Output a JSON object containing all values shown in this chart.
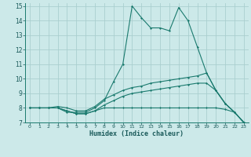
{
  "xlabel": "Humidex (Indice chaleur)",
  "bg_color": "#cce9e9",
  "grid_color": "#aacfcf",
  "line_color": "#1a7a6e",
  "xlim": [
    -0.5,
    23.5
  ],
  "ylim": [
    7,
    15.2
  ],
  "xticks": [
    0,
    1,
    2,
    3,
    4,
    5,
    6,
    7,
    8,
    9,
    10,
    11,
    12,
    13,
    14,
    15,
    16,
    17,
    18,
    19,
    20,
    21,
    22,
    23
  ],
  "yticks": [
    7,
    8,
    9,
    10,
    11,
    12,
    13,
    14,
    15
  ],
  "lines": [
    {
      "x": [
        0,
        1,
        2,
        3,
        4,
        5,
        6,
        7,
        8,
        9,
        10,
        11,
        12,
        13,
        14,
        15,
        16,
        17,
        18,
        19,
        20,
        21,
        22,
        23
      ],
      "y": [
        8,
        8,
        8,
        8,
        7.7,
        7.7,
        7.7,
        8.0,
        8.5,
        9.8,
        11.0,
        15.0,
        14.2,
        13.5,
        13.5,
        13.3,
        14.9,
        14.0,
        12.2,
        10.4,
        9.2,
        8.3,
        7.7,
        7.0
      ]
    },
    {
      "x": [
        0,
        1,
        2,
        3,
        4,
        5,
        6,
        7,
        8,
        9,
        10,
        11,
        12,
        13,
        14,
        15,
        16,
        17,
        18,
        19,
        20,
        21,
        22,
        23
      ],
      "y": [
        8,
        8,
        8,
        8.1,
        8.0,
        7.8,
        7.8,
        8.1,
        8.6,
        8.9,
        9.2,
        9.4,
        9.5,
        9.7,
        9.8,
        9.9,
        10.0,
        10.1,
        10.2,
        10.4,
        9.2,
        8.3,
        7.7,
        7.0
      ]
    },
    {
      "x": [
        0,
        1,
        2,
        3,
        4,
        5,
        6,
        7,
        8,
        9,
        10,
        11,
        12,
        13,
        14,
        15,
        16,
        17,
        18,
        19,
        20,
        21,
        22,
        23
      ],
      "y": [
        8,
        8,
        8,
        8.0,
        7.8,
        7.6,
        7.6,
        7.8,
        8.2,
        8.5,
        8.8,
        9.0,
        9.1,
        9.2,
        9.3,
        9.4,
        9.5,
        9.6,
        9.7,
        9.7,
        9.2,
        8.3,
        7.7,
        7.0
      ]
    },
    {
      "x": [
        0,
        1,
        2,
        3,
        4,
        5,
        6,
        7,
        8,
        9,
        10,
        11,
        12,
        13,
        14,
        15,
        16,
        17,
        18,
        19,
        20,
        21,
        22,
        23
      ],
      "y": [
        8,
        8,
        8,
        8.0,
        7.8,
        7.6,
        7.6,
        7.8,
        8.0,
        8.0,
        8.0,
        8.0,
        8.0,
        8.0,
        8.0,
        8.0,
        8.0,
        8.0,
        8.0,
        8.0,
        8.0,
        7.9,
        7.7,
        7.0
      ]
    }
  ]
}
